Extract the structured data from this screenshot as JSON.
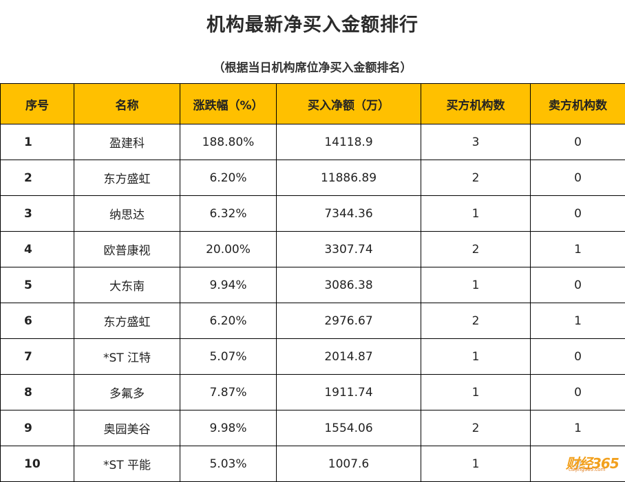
{
  "page": {
    "title": "机构最新净买入金额排行",
    "subtitle": "（根据当日机构席位净买入金额排名）"
  },
  "table": {
    "header_color": "#ffc000",
    "headers": [
      "序号",
      "名称",
      "涨跌幅（%）",
      "买入净额（万）",
      "买方机构数",
      "卖方机构数"
    ],
    "rows": [
      {
        "no": "1",
        "name": "盈建科",
        "change": "188.80%",
        "net_buy": "14118.9",
        "buyers": "3",
        "sellers": "0"
      },
      {
        "no": "2",
        "name": "东方盛虹",
        "change": "6.20%",
        "net_buy": "11886.89",
        "buyers": "2",
        "sellers": "0"
      },
      {
        "no": "3",
        "name": "纳思达",
        "change": "6.32%",
        "net_buy": "7344.36",
        "buyers": "1",
        "sellers": "0"
      },
      {
        "no": "4",
        "name": "欧普康视",
        "change": "20.00%",
        "net_buy": "3307.74",
        "buyers": "2",
        "sellers": "1"
      },
      {
        "no": "5",
        "name": "大东南",
        "change": "9.94%",
        "net_buy": "3086.38",
        "buyers": "1",
        "sellers": "0"
      },
      {
        "no": "6",
        "name": "东方盛虹",
        "change": "6.20%",
        "net_buy": "2976.67",
        "buyers": "2",
        "sellers": "1"
      },
      {
        "no": "7",
        "name": "*ST 江特",
        "change": "5.07%",
        "net_buy": "2014.87",
        "buyers": "1",
        "sellers": "0"
      },
      {
        "no": "8",
        "name": "多氟多",
        "change": "7.87%",
        "net_buy": "1911.74",
        "buyers": "1",
        "sellers": "0"
      },
      {
        "no": "9",
        "name": "奥园美谷",
        "change": "9.98%",
        "net_buy": "1554.06",
        "buyers": "2",
        "sellers": "1"
      },
      {
        "no": "10",
        "name": "*ST 平能",
        "change": "5.03%",
        "net_buy": "1007.6",
        "buyers": "1",
        "sellers": "0"
      }
    ]
  },
  "watermark": {
    "brand": "财经365",
    "site": "caijing365.com"
  }
}
